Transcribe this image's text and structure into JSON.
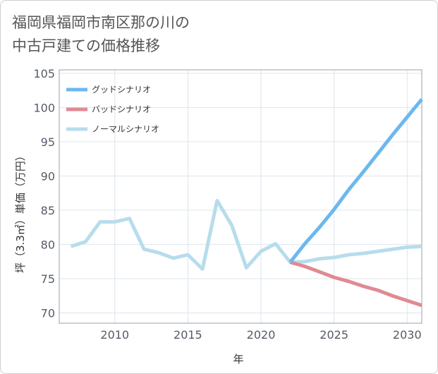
{
  "chart_data": {
    "type": "line",
    "title_lines": [
      "福岡県福岡市南区那の川の",
      "中古戸建ての価格推移"
    ],
    "xlabel": "年",
    "ylabel": "坪（3.3㎡）単価（万円）",
    "xlim": [
      2006.2,
      2031
    ],
    "ylim": [
      68.5,
      105.5
    ],
    "x_ticks": [
      2010,
      2015,
      2020,
      2025,
      2030
    ],
    "y_ticks": [
      70,
      75,
      80,
      85,
      90,
      95,
      100,
      105
    ],
    "grid": true,
    "legend_position": "top-left",
    "series": [
      {
        "name": "グッドシナリオ",
        "color": "#6cb8ee",
        "x": [
          2022,
          2023,
          2024,
          2025,
          2026,
          2027,
          2028,
          2029,
          2030,
          2031
        ],
        "values": [
          77.4,
          80.1,
          82.5,
          85.1,
          88.0,
          90.6,
          93.3,
          96.0,
          98.6,
          101.2
        ]
      },
      {
        "name": "バッドシナリオ",
        "color": "#e08a92",
        "x": [
          2022,
          2023,
          2024,
          2025,
          2026,
          2027,
          2028,
          2029,
          2030,
          2031
        ],
        "values": [
          77.4,
          76.8,
          76.0,
          75.2,
          74.6,
          73.9,
          73.3,
          72.5,
          71.8,
          71.1
        ]
      },
      {
        "name": "ノーマルシナリオ",
        "color": "#b8dcec",
        "x": [
          2007,
          2008,
          2009,
          2010,
          2011,
          2012,
          2013,
          2014,
          2015,
          2016,
          2017,
          2018,
          2019,
          2020,
          2021,
          2022,
          2023,
          2024,
          2025,
          2026,
          2027,
          2028,
          2029,
          2030,
          2031
        ],
        "values": [
          79.7,
          80.4,
          83.3,
          83.3,
          83.8,
          79.3,
          78.8,
          78.0,
          78.5,
          76.4,
          86.4,
          82.8,
          76.6,
          79.0,
          80.1,
          77.4,
          77.5,
          77.9,
          78.1,
          78.5,
          78.7,
          79.0,
          79.3,
          79.6,
          79.7
        ]
      }
    ]
  }
}
